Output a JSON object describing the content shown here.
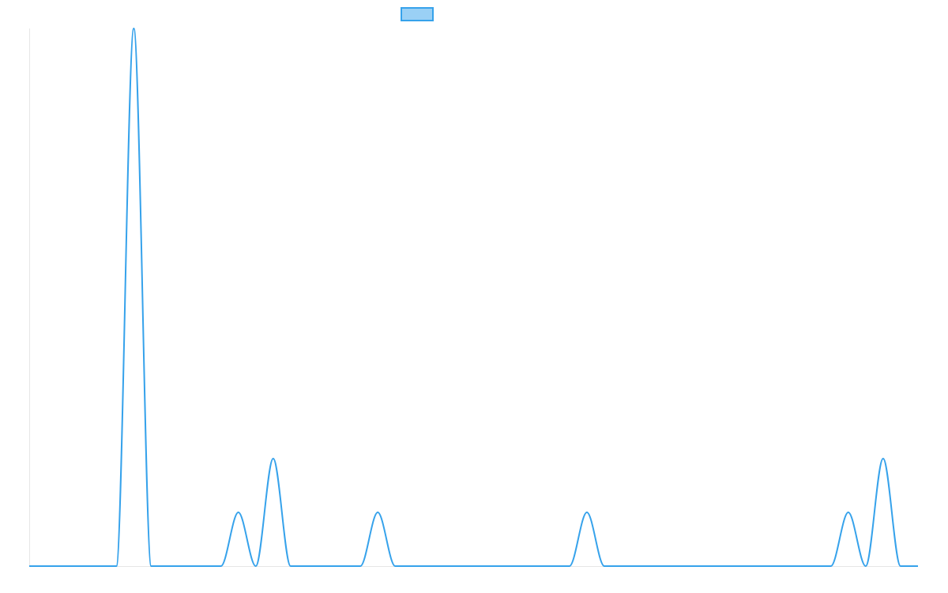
{
  "chart_data": {
    "type": "line",
    "series": [
      {
        "color": "#36a2eb",
        "fill": "#9ad0f5",
        "values": [
          0,
          0,
          0,
          0,
          0,
          0,
          10,
          0,
          0,
          0,
          0,
          0,
          1,
          0,
          2,
          0,
          0,
          0,
          0,
          0,
          1,
          0,
          0,
          0,
          0,
          0,
          0,
          0,
          0,
          0,
          0,
          0,
          1,
          0,
          0,
          0,
          0,
          0,
          0,
          0,
          0,
          0,
          0,
          0,
          0,
          0,
          0,
          1,
          0,
          2,
          0,
          0
        ]
      }
    ],
    "ylim": [
      0,
      10
    ],
    "legend": "top"
  }
}
